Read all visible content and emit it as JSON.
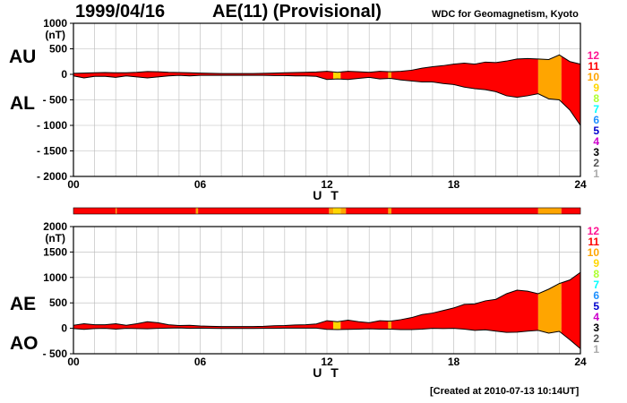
{
  "header": {
    "date": "1999/04/16",
    "title": "AE(11) (Provisional)",
    "source": "WDC for Geomagnetism, Kyoto"
  },
  "footer": {
    "created": "[Created at 2010-07-13 10:14UT]"
  },
  "level_colors": {
    "12": "#ff1493",
    "11": "#ff0000",
    "10": "#ffa500",
    "9": "#ffd700",
    "8": "#adff2f",
    "7": "#00ffff",
    "6": "#1e90ff",
    "5": "#0000cd",
    "4": "#cc00cc",
    "3": "#000000",
    "2": "#555555",
    "1": "#aaaaaa"
  },
  "legend_levels": [
    "12",
    "11",
    "10",
    "9",
    "8",
    "7",
    "6",
    "5",
    "4",
    "3",
    "2",
    "1"
  ],
  "chart_data": [
    {
      "type": "area",
      "id": "upper",
      "side_labels": [
        "AU",
        "AL"
      ],
      "ylabel": "(nT)",
      "xlabel": "U T",
      "xlim": [
        0,
        24
      ],
      "ylim": [
        -2000,
        1000
      ],
      "x_ticks": [
        0,
        6,
        12,
        18,
        24
      ],
      "x_tick_labels": [
        "00",
        "06",
        "12",
        "18",
        "24"
      ],
      "y_ticks": [
        1000,
        500,
        0,
        -500,
        -1000,
        -1500,
        -2000
      ],
      "y_tick_labels": [
        "1000",
        "500",
        "0",
        "- 500",
        "- 1000",
        "- 1500",
        "- 2000"
      ],
      "grid": true,
      "x": [
        0,
        0.5,
        1,
        1.5,
        2,
        2.5,
        3,
        3.5,
        4,
        4.5,
        5,
        5.5,
        6,
        6.5,
        7,
        7.5,
        8,
        8.5,
        9,
        9.5,
        10,
        10.5,
        11,
        11.5,
        12,
        12.5,
        13,
        13.5,
        14,
        14.5,
        15,
        15.5,
        16,
        16.5,
        17,
        17.5,
        18,
        18.5,
        19,
        19.5,
        20,
        20.5,
        21,
        21.5,
        22,
        22.5,
        23,
        23.5,
        24
      ],
      "series": [
        {
          "name": "AU",
          "values": [
            20,
            25,
            30,
            35,
            30,
            30,
            40,
            55,
            50,
            40,
            35,
            30,
            25,
            20,
            15,
            15,
            15,
            15,
            20,
            25,
            30,
            35,
            40,
            45,
            60,
            40,
            60,
            50,
            40,
            60,
            50,
            60,
            80,
            120,
            150,
            170,
            200,
            220,
            200,
            240,
            230,
            260,
            300,
            310,
            300,
            290,
            380,
            250,
            200
          ]
        },
        {
          "name": "AL",
          "values": [
            -30,
            -70,
            -40,
            -40,
            -60,
            -30,
            -50,
            -70,
            -50,
            -30,
            -20,
            -30,
            -20,
            -20,
            -20,
            -20,
            -20,
            -20,
            -20,
            -25,
            -25,
            -30,
            -30,
            -40,
            -100,
            -90,
            -100,
            -80,
            -60,
            -90,
            -80,
            -110,
            -130,
            -150,
            -150,
            -180,
            -200,
            -250,
            -280,
            -300,
            -340,
            -420,
            -450,
            -420,
            -380,
            -480,
            -500,
            -700,
            -1000
          ]
        }
      ],
      "activity_levels": [
        {
          "from": 0,
          "to": 12.3,
          "level": "11"
        },
        {
          "from": 12.3,
          "to": 12.65,
          "level": "9"
        },
        {
          "from": 12.65,
          "to": 14.9,
          "level": "11"
        },
        {
          "from": 14.9,
          "to": 15.05,
          "level": "10"
        },
        {
          "from": 15.05,
          "to": 22,
          "level": "11"
        },
        {
          "from": 22,
          "to": 23.1,
          "level": "10"
        },
        {
          "from": 23.1,
          "to": 24,
          "level": "11"
        }
      ]
    },
    {
      "type": "area",
      "id": "lower",
      "side_labels": [
        "AE",
        "AO"
      ],
      "ylabel": "(nT)",
      "xlabel": "U T",
      "xlim": [
        0,
        24
      ],
      "ylim": [
        -500,
        2000
      ],
      "x_ticks": [
        0,
        6,
        12,
        18,
        24
      ],
      "x_tick_labels": [
        "00",
        "06",
        "12",
        "18",
        "24"
      ],
      "y_ticks": [
        2000,
        1500,
        1000,
        500,
        0,
        -500
      ],
      "y_tick_labels": [
        "2000",
        "1500",
        "1000",
        "500",
        "0",
        "- 500"
      ],
      "grid": true,
      "x": [
        0,
        0.5,
        1,
        1.5,
        2,
        2.5,
        3,
        3.5,
        4,
        4.5,
        5,
        5.5,
        6,
        6.5,
        7,
        7.5,
        8,
        8.5,
        9,
        9.5,
        10,
        10.5,
        11,
        11.5,
        12,
        12.5,
        13,
        13.5,
        14,
        14.5,
        15,
        15.5,
        16,
        16.5,
        17,
        17.5,
        18,
        18.5,
        19,
        19.5,
        20,
        20.5,
        21,
        21.5,
        22,
        22.5,
        23,
        23.5,
        24
      ],
      "series": [
        {
          "name": "AE",
          "values": [
            60,
            90,
            70,
            70,
            90,
            60,
            90,
            130,
            110,
            70,
            55,
            60,
            45,
            40,
            35,
            35,
            35,
            35,
            40,
            50,
            55,
            65,
            70,
            85,
            150,
            130,
            160,
            130,
            110,
            150,
            140,
            170,
            210,
            270,
            300,
            350,
            400,
            470,
            480,
            540,
            570,
            680,
            750,
            730,
            680,
            770,
            880,
            950,
            1100
          ]
        },
        {
          "name": "AO",
          "values": [
            -5,
            -20,
            -5,
            0,
            -15,
            0,
            -5,
            -10,
            0,
            5,
            8,
            0,
            3,
            0,
            -3,
            -3,
            -3,
            -3,
            0,
            0,
            3,
            3,
            5,
            3,
            -20,
            -25,
            -20,
            -15,
            -10,
            -15,
            -15,
            -25,
            -25,
            -15,
            0,
            -5,
            0,
            -15,
            -40,
            -30,
            -55,
            -80,
            -75,
            -55,
            -40,
            -95,
            -60,
            -225,
            -400
          ]
        }
      ],
      "activity_levels": [
        {
          "from": 0,
          "to": 12.3,
          "level": "11"
        },
        {
          "from": 12.3,
          "to": 12.65,
          "level": "9"
        },
        {
          "from": 12.65,
          "to": 14.9,
          "level": "11"
        },
        {
          "from": 14.9,
          "to": 15.05,
          "level": "10"
        },
        {
          "from": 15.05,
          "to": 22,
          "level": "11"
        },
        {
          "from": 22,
          "to": 23.1,
          "level": "10"
        },
        {
          "from": 23.1,
          "to": 24,
          "level": "11"
        }
      ]
    }
  ],
  "activity_bar": [
    {
      "from": 0,
      "to": 2.0,
      "level": "11"
    },
    {
      "from": 2.0,
      "to": 2.05,
      "level": "10"
    },
    {
      "from": 2.05,
      "to": 5.8,
      "level": "11"
    },
    {
      "from": 5.8,
      "to": 5.9,
      "level": "10"
    },
    {
      "from": 5.9,
      "to": 12.1,
      "level": "11"
    },
    {
      "from": 12.1,
      "to": 12.3,
      "level": "10"
    },
    {
      "from": 12.3,
      "to": 12.65,
      "level": "9"
    },
    {
      "from": 12.65,
      "to": 12.9,
      "level": "10"
    },
    {
      "from": 12.9,
      "to": 14.9,
      "level": "11"
    },
    {
      "from": 14.9,
      "to": 15.05,
      "level": "10"
    },
    {
      "from": 15.05,
      "to": 22.0,
      "level": "11"
    },
    {
      "from": 22.0,
      "to": 23.1,
      "level": "10"
    },
    {
      "from": 23.1,
      "to": 24,
      "level": "11"
    }
  ]
}
